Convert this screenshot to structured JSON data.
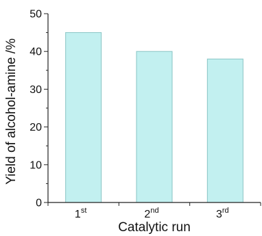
{
  "chart_data": {
    "type": "bar",
    "categories": [
      {
        "base": "1",
        "sup": "st"
      },
      {
        "base": "2",
        "sup": "nd"
      },
      {
        "base": "3",
        "sup": "rd"
      }
    ],
    "values": [
      45,
      40,
      38
    ],
    "xlabel": "Catalytic run",
    "ylabel": "Yield of alcohol-amine /%",
    "ylim": [
      0,
      50
    ],
    "yticks": [
      "0",
      "10",
      "20",
      "30",
      "40",
      "50"
    ],
    "bar_fill": "#c2f0f0",
    "bar_stroke": "#88c4c4",
    "axis_color": "#222222",
    "grid": false,
    "legend": "none"
  }
}
